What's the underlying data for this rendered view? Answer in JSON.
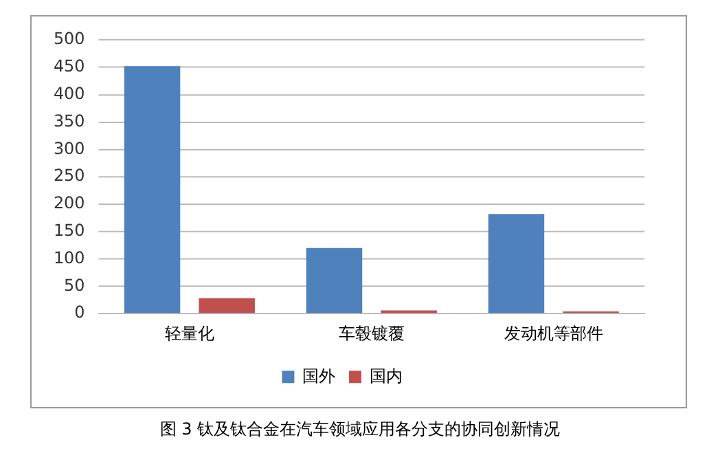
{
  "chart_data": {
    "type": "bar",
    "categories": [
      "轻量化",
      "车毂镀覆",
      "发动机等部件"
    ],
    "series": [
      {
        "name": "国外",
        "color": "#4f81bd",
        "values": [
          452,
          120,
          182
        ]
      },
      {
        "name": "国内",
        "color": "#c0504d",
        "values": [
          28,
          6,
          4
        ]
      }
    ],
    "ylim": [
      0,
      500
    ],
    "yticks": [
      0,
      50,
      100,
      150,
      200,
      250,
      300,
      350,
      400,
      450,
      500
    ],
    "grid": "y",
    "legend": "bottom",
    "annotations": [
      "图 3  钛及钛合金在汽车领域应用各分支的协同创新情况"
    ]
  }
}
